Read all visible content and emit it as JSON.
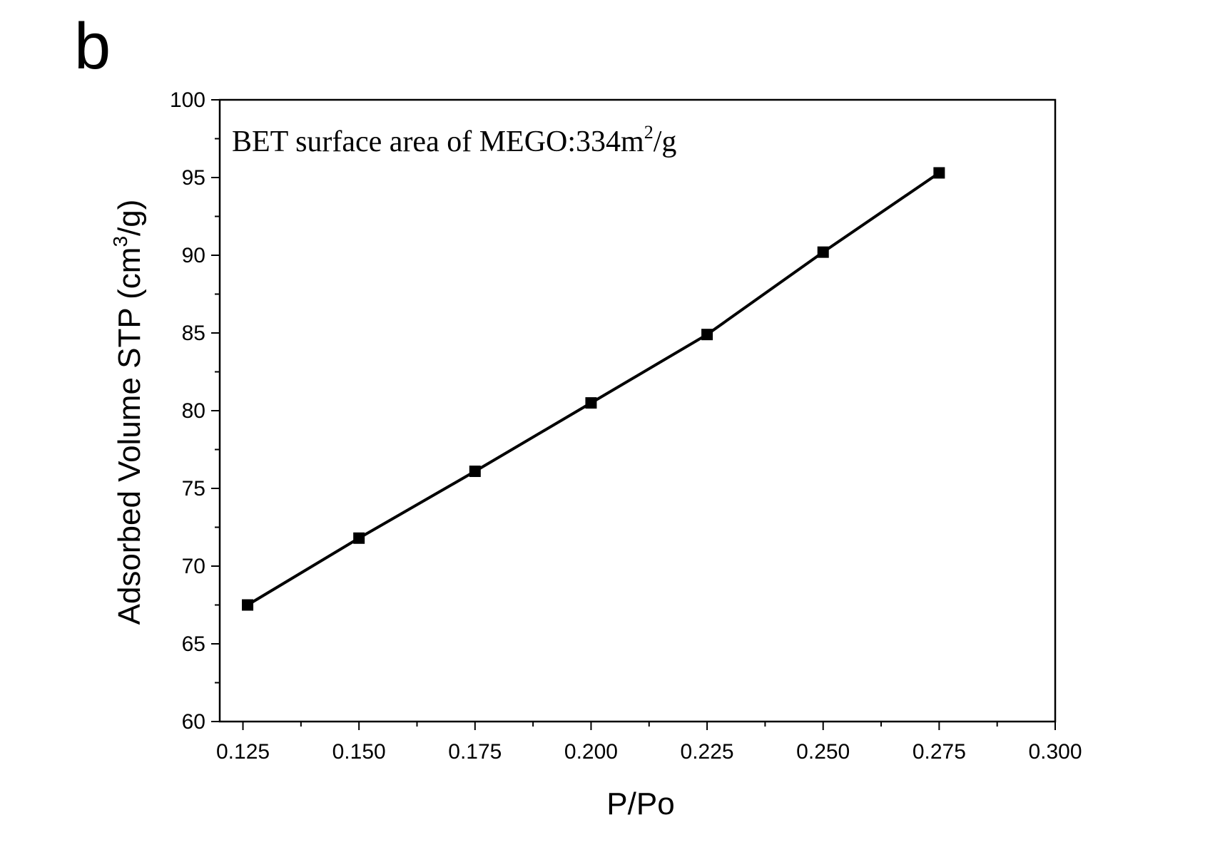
{
  "panel_label": "b",
  "chart_data": {
    "type": "line",
    "title": "",
    "xlabel": "P/Po",
    "ylabel": {
      "main": "Adsorbed Volume STP (cm",
      "sup": "3",
      "tail": "/g)"
    },
    "annotation": {
      "main": "BET surface area of MEGO:334m",
      "sup": "2",
      "tail": "/g"
    },
    "xlim": [
      0.12,
      0.3
    ],
    "ylim": [
      60,
      100
    ],
    "x_ticks": [
      0.125,
      0.15,
      0.175,
      0.2,
      0.225,
      0.25,
      0.275,
      0.3
    ],
    "x_tick_labels": [
      "0.125",
      "0.150",
      "0.175",
      "0.200",
      "0.225",
      "0.250",
      "0.275",
      "0.300"
    ],
    "x_minor_ticks": [
      0.1375,
      0.1625,
      0.1875,
      0.2125,
      0.2375,
      0.2625,
      0.2875
    ],
    "y_ticks": [
      60,
      65,
      70,
      75,
      80,
      85,
      90,
      95,
      100
    ],
    "y_tick_labels": [
      "60",
      "65",
      "70",
      "75",
      "80",
      "85",
      "90",
      "95",
      "100"
    ],
    "y_minor_ticks": [
      62.5,
      67.5,
      72.5,
      77.5,
      82.5,
      87.5,
      92.5,
      97.5
    ],
    "grid": false,
    "series": [
      {
        "name": "MEGO",
        "marker": "square",
        "color": "#000000",
        "x": [
          0.126,
          0.15,
          0.175,
          0.2,
          0.225,
          0.25,
          0.275
        ],
        "y": [
          67.5,
          71.8,
          76.1,
          80.5,
          84.9,
          90.2,
          95.3
        ]
      }
    ]
  }
}
